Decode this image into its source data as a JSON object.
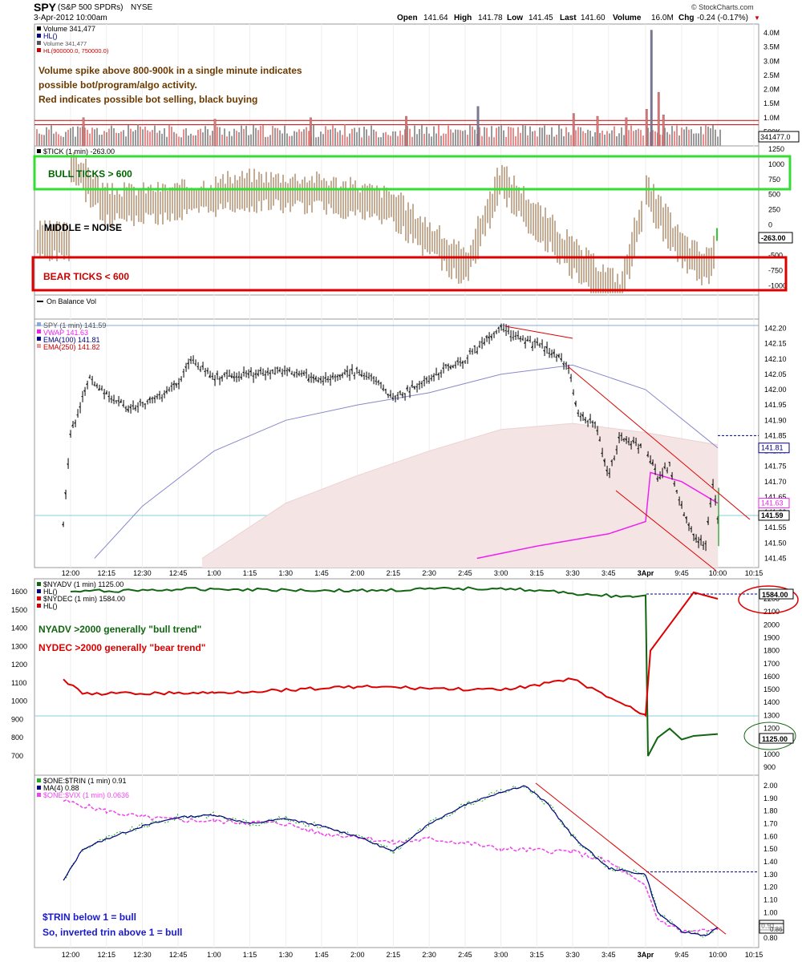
{
  "header": {
    "symbol": "SPY",
    "name": "(S&P 500 SPDRs)",
    "exchange": "NYSE",
    "date": "3-Apr-2012 10:00am",
    "brand": "© StockCharts.com",
    "open_label": "Open",
    "open": "141.64",
    "high_label": "High",
    "high": "141.78",
    "low_label": "Low",
    "low": "141.45",
    "last_label": "Last",
    "last": "141.60",
    "volume_label": "Volume",
    "volume": "16.0M",
    "chg_label": "Chg",
    "chg": "-0.24 (-0.17%)",
    "down_color": "#cc0000"
  },
  "time_axis": [
    "12:00",
    "12:15",
    "12:30",
    "12:45",
    "1:00",
    "1:15",
    "1:30",
    "1:45",
    "2:00",
    "2:15",
    "2:30",
    "2:45",
    "3:00",
    "3:15",
    "3:30",
    "3:45",
    "3Apr",
    "9:45",
    "10:00",
    "10:15"
  ],
  "chart_data": [
    {
      "panel": "volume",
      "type": "bar",
      "legend": [
        "Volume 341,477",
        "HL()",
        "Volume 341,477",
        "HL(900000.0, 750000.0)"
      ],
      "annotations": [
        "Volume spike above 800-900k in a single minute indicates",
        "possible bot/program/algo activity.",
        "Red indicates possible bot selling, black buying"
      ],
      "y_ticks": [
        "4.0M",
        "3.5M",
        "3.0M",
        "2.5M",
        "2.0M",
        "1.5M",
        "1.0M",
        "500K"
      ],
      "ylim": [
        0,
        4200000
      ],
      "hlines": [
        900000,
        750000
      ],
      "last_value_label": "341477.0",
      "spikes": [
        {
          "time": "12:05",
          "value": 1000000,
          "color": "red"
        },
        {
          "time": "1:00",
          "value": 950000,
          "color": "red"
        },
        {
          "time": "1:40",
          "value": 1000000,
          "color": "red"
        },
        {
          "time": "2:20",
          "value": 1050000,
          "color": "red"
        },
        {
          "time": "2:50",
          "value": 1400000,
          "color": "gray"
        },
        {
          "time": "3:30",
          "value": 1150000,
          "color": "red"
        },
        {
          "time": "3:40",
          "value": 1050000,
          "color": "red"
        },
        {
          "time": "3:52",
          "value": 1000000,
          "color": "red"
        },
        {
          "time": "9:30",
          "value": 1300000,
          "color": "red"
        },
        {
          "time": "9:32",
          "value": 4100000,
          "color": "gray"
        },
        {
          "time": "9:35",
          "value": 1900000,
          "color": "red"
        },
        {
          "time": "9:37",
          "value": 1100000,
          "color": "red"
        }
      ]
    },
    {
      "panel": "tick",
      "type": "bar",
      "legend": [
        "$TICK (1 min) -263.00"
      ],
      "annotations": [
        "BULL TICKS > 600",
        "MIDDLE = NOISE",
        "BEAR TICKS < 600"
      ],
      "y_ticks": [
        1250,
        1000,
        750,
        500,
        250,
        0,
        -250,
        -500,
        -750,
        -1000
      ],
      "ylim": [
        -1150,
        1300
      ],
      "last_value_label": "-263.00",
      "key_points": [
        {
          "time": "12:00",
          "value": 1050
        },
        {
          "time": "12:15",
          "value": 350
        },
        {
          "time": "12:45",
          "value": 400
        },
        {
          "time": "1:15",
          "value": 600
        },
        {
          "time": "1:45",
          "value": 550
        },
        {
          "time": "2:15",
          "value": 300
        },
        {
          "time": "2:45",
          "value": -700
        },
        {
          "time": "3:00",
          "value": 750
        },
        {
          "time": "3:15",
          "value": 100
        },
        {
          "time": "3:30",
          "value": -500
        },
        {
          "time": "3:40",
          "value": -850
        },
        {
          "time": "3:50",
          "value": -1100
        },
        {
          "time": "3Apr",
          "value": 550
        },
        {
          "time": "9:45",
          "value": -400
        },
        {
          "time": "9:55",
          "value": -700
        },
        {
          "time": "10:00",
          "value": -263
        }
      ]
    },
    {
      "panel": "obv",
      "type": "line",
      "legend": [
        "On Balance Vol"
      ]
    },
    {
      "panel": "price",
      "type": "line",
      "legend": [
        "SPY (1 min) 141.59",
        "VWAP 141.63",
        "EMA(100) 141.81",
        "EMA(250) 141.82"
      ],
      "y_ticks": [
        "142.20",
        "142.15",
        "142.10",
        "142.05",
        "142.00",
        "141.95",
        "141.90",
        "141.85",
        "141.80",
        "141.75",
        "141.70",
        "141.65",
        "141.60",
        "141.55",
        "141.50",
        "141.45"
      ],
      "ylim": [
        141.42,
        142.23
      ],
      "value_labels": [
        "141.81",
        "141.63",
        "141.59"
      ],
      "price": [
        {
          "time": "11:57",
          "value": 141.57
        },
        {
          "time": "12:00",
          "value": 141.85
        },
        {
          "time": "12:05",
          "value": 141.97
        },
        {
          "time": "12:08",
          "value": 142.05
        },
        {
          "time": "12:15",
          "value": 141.98
        },
        {
          "time": "12:25",
          "value": 141.94
        },
        {
          "time": "12:35",
          "value": 141.97
        },
        {
          "time": "12:45",
          "value": 142.02
        },
        {
          "time": "12:50",
          "value": 142.1
        },
        {
          "time": "1:00",
          "value": 142.04
        },
        {
          "time": "1:15",
          "value": 142.05
        },
        {
          "time": "1:30",
          "value": 142.06
        },
        {
          "time": "1:45",
          "value": 142.03
        },
        {
          "time": "2:00",
          "value": 142.06
        },
        {
          "time": "2:10",
          "value": 142.02
        },
        {
          "time": "2:15",
          "value": 141.97
        },
        {
          "time": "2:30",
          "value": 142.04
        },
        {
          "time": "2:45",
          "value": 142.1
        },
        {
          "time": "3:00",
          "value": 142.2
        },
        {
          "time": "3:10",
          "value": 142.16
        },
        {
          "time": "3:20",
          "value": 142.13
        },
        {
          "time": "3:28",
          "value": 142.08
        },
        {
          "time": "3:32",
          "value": 141.93
        },
        {
          "time": "3:40",
          "value": 141.88
        },
        {
          "time": "3:45",
          "value": 141.72
        },
        {
          "time": "3:50",
          "value": 141.85
        },
        {
          "time": "3Apr",
          "value": 141.8
        },
        {
          "time": "9:35",
          "value": 141.72
        },
        {
          "time": "9:40",
          "value": 141.75
        },
        {
          "time": "9:45",
          "value": 141.62
        },
        {
          "time": "9:50",
          "value": 141.52
        },
        {
          "time": "9:55",
          "value": 141.5
        },
        {
          "time": "9:58",
          "value": 141.7
        },
        {
          "time": "10:00",
          "value": 141.59
        }
      ],
      "ema100": [
        {
          "time": "12:10",
          "value": 141.45
        },
        {
          "time": "12:30",
          "value": 141.62
        },
        {
          "time": "1:00",
          "value": 141.8
        },
        {
          "time": "1:30",
          "value": 141.9
        },
        {
          "time": "2:00",
          "value": 141.95
        },
        {
          "time": "2:30",
          "value": 141.99
        },
        {
          "time": "3:00",
          "value": 142.05
        },
        {
          "time": "3:30",
          "value": 142.08
        },
        {
          "time": "3Apr",
          "value": 142.0
        },
        {
          "time": "10:00",
          "value": 141.81
        }
      ],
      "ema250": [
        {
          "time": "12:55",
          "value": 141.45
        },
        {
          "time": "1:30",
          "value": 141.63
        },
        {
          "time": "2:00",
          "value": 141.72
        },
        {
          "time": "2:30",
          "value": 141.8
        },
        {
          "time": "3:00",
          "value": 141.87
        },
        {
          "time": "3:30",
          "value": 141.89
        },
        {
          "time": "3Apr",
          "value": 141.86
        },
        {
          "time": "10:00",
          "value": 141.82
        }
      ],
      "vwap": [
        {
          "time": "2:50",
          "value": 141.45
        },
        {
          "time": "3:15",
          "value": 141.49
        },
        {
          "time": "3:45",
          "value": 141.53
        },
        {
          "time": "3Apr",
          "value": 141.57
        },
        {
          "time": "9:32",
          "value": 141.73
        },
        {
          "time": "9:45",
          "value": 141.7
        },
        {
          "time": "10:00",
          "value": 141.63
        }
      ]
    },
    {
      "panel": "breadth",
      "type": "line",
      "legend": [
        "$NYADV (1 min) 1125.00",
        "HL()",
        "$NYDEC (1 min) 1584.00",
        "HL()"
      ],
      "annotations": [
        "NYADV >2000 generally \"bull trend\"",
        "NYDEC >2000 generally \"bear trend\""
      ],
      "y_ticks_left": [
        1600,
        1500,
        1400,
        1300,
        1200,
        1100,
        1000,
        900,
        800,
        700
      ],
      "y_ticks_right": [
        2200,
        2100,
        2000,
        1900,
        1800,
        1700,
        1600,
        1500,
        1400,
        1300,
        1200,
        1100,
        1000,
        900
      ],
      "value_labels": [
        "1584.00",
        "1125.00"
      ],
      "nyadv": [
        {
          "time": "12:00",
          "value": 1600
        },
        {
          "time": "1:00",
          "value": 1615
        },
        {
          "time": "2:00",
          "value": 1605
        },
        {
          "time": "3:00",
          "value": 1620
        },
        {
          "time": "3:30",
          "value": 1590
        },
        {
          "time": "3:55",
          "value": 1570
        },
        {
          "time": "3Apr",
          "value": 1580
        },
        {
          "time": "9:31",
          "value": 700
        },
        {
          "time": "9:35",
          "value": 800
        },
        {
          "time": "9:40",
          "value": 850
        },
        {
          "time": "9:45",
          "value": 790
        },
        {
          "time": "9:50",
          "value": 810
        },
        {
          "time": "10:00",
          "value": 820
        }
      ],
      "nydec": [
        {
          "time": "11:57",
          "value": 1120
        },
        {
          "time": "12:05",
          "value": 1040
        },
        {
          "time": "1:00",
          "value": 1045
        },
        {
          "time": "2:00",
          "value": 1080
        },
        {
          "time": "3:00",
          "value": 1060
        },
        {
          "time": "3:30",
          "value": 1120
        },
        {
          "time": "3Apr",
          "value": 1300
        },
        {
          "time": "9:32",
          "value": 1800
        },
        {
          "time": "9:40",
          "value": 2000
        },
        {
          "time": "9:50",
          "value": 2250
        },
        {
          "time": "10:00",
          "value": 2200
        }
      ]
    },
    {
      "panel": "trin",
      "type": "line",
      "legend": [
        "$ONE:$TRIN (1 min) 0.91",
        "MA(4) 0.88",
        "$ONE:$VIX (1 min) 0.0636"
      ],
      "annotations": [
        "$TRIN below 1 = bull",
        "So, inverted trin above 1 = bull"
      ],
      "y_ticks": [
        "2.00",
        "1.90",
        "1.80",
        "1.70",
        "1.60",
        "1.50",
        "1.40",
        "1.30",
        "1.20",
        "1.10",
        "1.00",
        "0.90",
        "0.80"
      ],
      "ylim": [
        0.75,
        2.05
      ],
      "value_labels": [
        "0.91",
        "0.86"
      ],
      "trin": [
        {
          "time": "11:57",
          "value": 1.25
        },
        {
          "time": "12:05",
          "value": 1.5
        },
        {
          "time": "12:15",
          "value": 1.58
        },
        {
          "time": "12:30",
          "value": 1.68
        },
        {
          "time": "12:45",
          "value": 1.75
        },
        {
          "time": "1:00",
          "value": 1.77
        },
        {
          "time": "1:15",
          "value": 1.7
        },
        {
          "time": "1:30",
          "value": 1.74
        },
        {
          "time": "1:45",
          "value": 1.68
        },
        {
          "time": "2:00",
          "value": 1.6
        },
        {
          "time": "2:15",
          "value": 1.48
        },
        {
          "time": "2:30",
          "value": 1.7
        },
        {
          "time": "2:45",
          "value": 1.85
        },
        {
          "time": "3:00",
          "value": 1.95
        },
        {
          "time": "3:10",
          "value": 2.0
        },
        {
          "time": "3:20",
          "value": 1.85
        },
        {
          "time": "3:30",
          "value": 1.6
        },
        {
          "time": "3:45",
          "value": 1.35
        },
        {
          "time": "3Apr",
          "value": 1.3
        },
        {
          "time": "9:35",
          "value": 1.0
        },
        {
          "time": "9:45",
          "value": 0.85
        },
        {
          "time": "9:55",
          "value": 0.82
        },
        {
          "time": "10:00",
          "value": 0.88
        }
      ],
      "vix": [
        {
          "time": "11:57",
          "value": 1.88
        },
        {
          "time": "12:15",
          "value": 1.8
        },
        {
          "time": "12:30",
          "value": 1.75
        },
        {
          "time": "12:45",
          "value": 1.73
        },
        {
          "time": "1:00",
          "value": 1.72
        },
        {
          "time": "1:30",
          "value": 1.7
        },
        {
          "time": "1:45",
          "value": 1.62
        },
        {
          "time": "2:00",
          "value": 1.6
        },
        {
          "time": "2:15",
          "value": 1.55
        },
        {
          "time": "2:30",
          "value": 1.58
        },
        {
          "time": "2:45",
          "value": 1.55
        },
        {
          "time": "3:00",
          "value": 1.5
        },
        {
          "time": "3:30",
          "value": 1.48
        },
        {
          "time": "3:45",
          "value": 1.4
        },
        {
          "time": "3Apr",
          "value": 1.2
        },
        {
          "time": "9:35",
          "value": 0.95
        },
        {
          "time": "9:45",
          "value": 0.85
        },
        {
          "time": "10:00",
          "value": 0.86
        }
      ]
    }
  ]
}
